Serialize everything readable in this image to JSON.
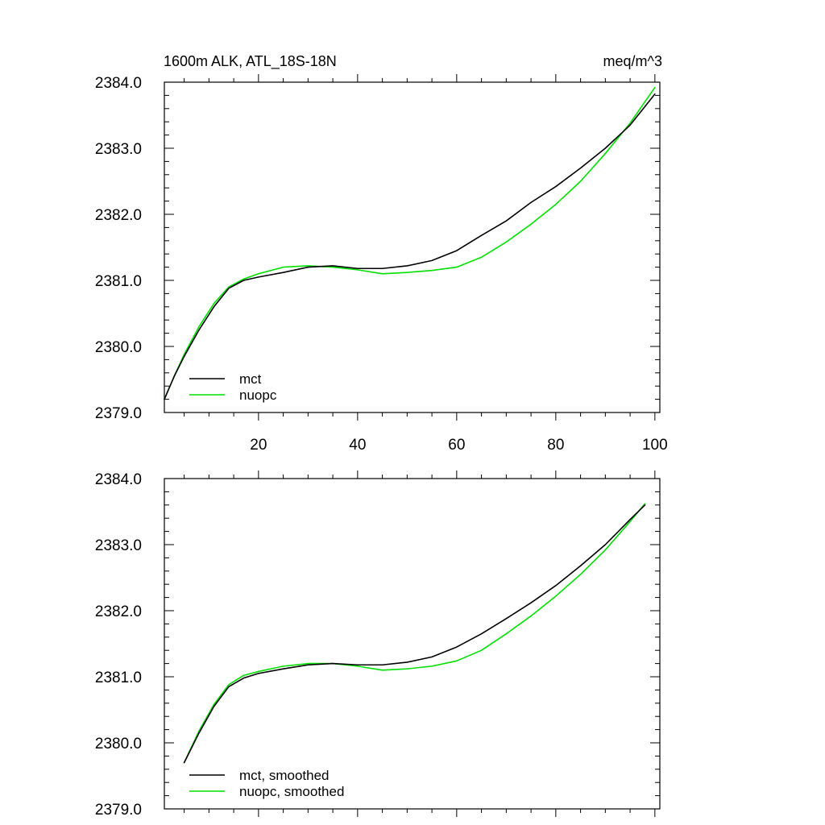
{
  "chart_data": [
    {
      "type": "line",
      "title": "1600m ALK, ATL_18S-18N",
      "units": "meq/m^3",
      "xlim": [
        1,
        101
      ],
      "ylim": [
        2379.0,
        2384.0
      ],
      "xticks": [
        20,
        40,
        60,
        80,
        100
      ],
      "xtick_labels": [
        "20",
        "40",
        "60",
        "80",
        "100"
      ],
      "yticks": [
        2379.0,
        2380.0,
        2381.0,
        2382.0,
        2383.0,
        2384.0
      ],
      "ytick_labels": [
        "2379.0",
        "2380.0",
        "2381.0",
        "2382.0",
        "2383.0",
        "2384.0"
      ],
      "legend_position": "bottom-left",
      "series": [
        {
          "name": "mct",
          "color": "#000000",
          "x": [
            1,
            3,
            5,
            8,
            11,
            14,
            17,
            20,
            25,
            30,
            35,
            40,
            45,
            50,
            55,
            60,
            65,
            70,
            75,
            80,
            85,
            90,
            95,
            100
          ],
          "values": [
            2379.2,
            2379.55,
            2379.85,
            2380.25,
            2380.6,
            2380.88,
            2381.0,
            2381.05,
            2381.12,
            2381.2,
            2381.22,
            2381.18,
            2381.18,
            2381.22,
            2381.3,
            2381.45,
            2381.68,
            2381.9,
            2382.18,
            2382.42,
            2382.7,
            2383.0,
            2383.35,
            2383.82
          ]
        },
        {
          "name": "nuopc",
          "color": "#00e000",
          "x": [
            1,
            3,
            5,
            8,
            11,
            14,
            17,
            20,
            25,
            30,
            35,
            40,
            45,
            50,
            55,
            60,
            65,
            70,
            75,
            80,
            85,
            90,
            95,
            100
          ],
          "values": [
            2379.2,
            2379.55,
            2379.88,
            2380.3,
            2380.65,
            2380.9,
            2381.02,
            2381.1,
            2381.2,
            2381.22,
            2381.2,
            2381.16,
            2381.1,
            2381.12,
            2381.15,
            2381.2,
            2381.35,
            2381.58,
            2381.85,
            2382.15,
            2382.5,
            2382.92,
            2383.38,
            2383.92
          ]
        }
      ]
    },
    {
      "type": "line",
      "xlim": [
        1,
        101
      ],
      "ylim": [
        2379.0,
        2384.0
      ],
      "xticks": [
        20,
        40,
        60,
        80,
        100
      ],
      "yticks": [
        2379.0,
        2380.0,
        2381.0,
        2382.0,
        2383.0,
        2384.0
      ],
      "ytick_labels": [
        "2379.0",
        "2380.0",
        "2381.0",
        "2382.0",
        "2383.0",
        "2384.0"
      ],
      "legend_position": "bottom-left",
      "series": [
        {
          "name": "mct, smoothed",
          "color": "#000000",
          "x": [
            5,
            8,
            11,
            14,
            17,
            20,
            25,
            30,
            35,
            40,
            45,
            50,
            55,
            60,
            65,
            70,
            75,
            80,
            85,
            90,
            95,
            98
          ],
          "values": [
            2379.7,
            2380.15,
            2380.55,
            2380.85,
            2380.98,
            2381.05,
            2381.12,
            2381.18,
            2381.2,
            2381.18,
            2381.18,
            2381.22,
            2381.3,
            2381.45,
            2381.65,
            2381.88,
            2382.12,
            2382.38,
            2382.68,
            2383.0,
            2383.38,
            2383.6
          ]
        },
        {
          "name": "nuopc, smoothed",
          "color": "#00e000",
          "x": [
            5,
            8,
            11,
            14,
            17,
            20,
            25,
            30,
            35,
            40,
            45,
            50,
            55,
            60,
            65,
            70,
            75,
            80,
            85,
            90,
            95,
            98
          ],
          "values": [
            2379.7,
            2380.18,
            2380.58,
            2380.88,
            2381.02,
            2381.08,
            2381.16,
            2381.2,
            2381.2,
            2381.16,
            2381.1,
            2381.12,
            2381.16,
            2381.24,
            2381.4,
            2381.65,
            2381.92,
            2382.22,
            2382.55,
            2382.92,
            2383.35,
            2383.62
          ]
        }
      ]
    }
  ]
}
